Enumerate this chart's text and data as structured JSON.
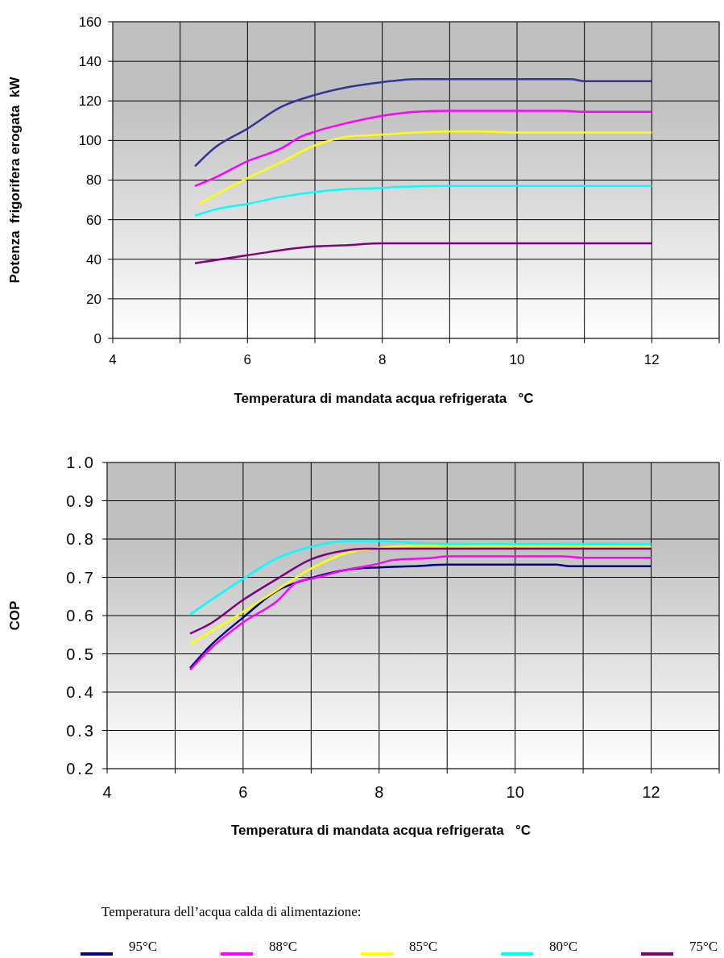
{
  "chart_data": [
    {
      "type": "line",
      "xlabel": "Temperatura di mandata acqua refrigerata   °C",
      "ylabel": "Potenza  frigorifera erogata  kW",
      "xlim": [
        4,
        13
      ],
      "xticks": [
        4,
        {
          "value": 5,
          "label": null
        },
        6,
        {
          "value": 7,
          "label": null
        },
        8,
        {
          "value": 9,
          "label": null
        },
        10,
        {
          "value": 11,
          "label": null
        },
        12,
        {
          "value": 13,
          "label": null
        }
      ],
      "ylim": [
        0,
        160
      ],
      "yticks": [
        0,
        20,
        40,
        60,
        80,
        100,
        120,
        140,
        160
      ],
      "grid": true,
      "line_style": "solid",
      "marker": "none",
      "series": [
        {
          "color": "#333399",
          "x": [
            5.22,
            5.5,
            6,
            6.5,
            7,
            7.5,
            8,
            8.5,
            9,
            10,
            10.8,
            11,
            12
          ],
          "values": [
            87,
            96,
            106,
            117,
            123,
            127,
            129.5,
            131,
            131,
            131,
            131,
            130,
            130
          ]
        },
        {
          "color": "#ff00ff",
          "x": [
            5.22,
            5.5,
            6,
            6.5,
            6.8,
            7,
            7.5,
            8,
            8.5,
            9,
            10,
            10.7,
            11,
            12
          ],
          "values": [
            77,
            81,
            89.5,
            96,
            102,
            104.5,
            109,
            112.5,
            114.5,
            115,
            115,
            115,
            114.5,
            114.5
          ]
        },
        {
          "color": "#ffff00",
          "x": [
            5.28,
            6,
            6.5,
            7,
            7.5,
            8,
            8.5,
            9,
            9.5,
            10,
            12
          ],
          "values": [
            68,
            81,
            89,
            97.5,
            102,
            103,
            104,
            104.5,
            104.5,
            104,
            104
          ]
        },
        {
          "color": "#00ffff",
          "x": [
            5.22,
            5.5,
            6,
            6.5,
            7,
            7.5,
            8,
            8.2,
            9,
            12
          ],
          "values": [
            62,
            65,
            68,
            71.5,
            74,
            75.5,
            76,
            76.5,
            77,
            77
          ]
        },
        {
          "color": "#800080",
          "x": [
            5.22,
            6,
            7,
            7.4,
            8,
            12
          ],
          "values": [
            38,
            42,
            46.5,
            47,
            48,
            48
          ]
        }
      ]
    },
    {
      "type": "line",
      "xlabel": "Temperatura di mandata acqua refrigerata   °C",
      "ylabel": "COP",
      "legend_title": "Temperatura dell’acqua calda di alimentazione:",
      "legend": "bottom",
      "xlim": [
        4,
        13
      ],
      "xticks": [
        4,
        {
          "value": 5,
          "label": null
        },
        6,
        {
          "value": 7,
          "label": null
        },
        8,
        {
          "value": 9,
          "label": null
        },
        10,
        {
          "value": 11,
          "label": null
        },
        12,
        {
          "value": 13,
          "label": null
        }
      ],
      "ylim": [
        0.2,
        1.0
      ],
      "yticks": [
        0.2,
        0.3,
        0.4,
        0.5,
        0.6,
        0.7,
        0.8,
        0.9,
        {
          "value": 1.0,
          "label": "1.0"
        }
      ],
      "grid": true,
      "line_style": "solid",
      "marker": "none",
      "series": [
        {
          "name": "95°C",
          "color": "#000080",
          "x": [
            5.22,
            5.5,
            6,
            6.5,
            7,
            7.5,
            8,
            8.5,
            9,
            10.6,
            10.8,
            12
          ],
          "values": [
            0.463,
            0.518,
            0.595,
            0.665,
            0.698,
            0.719,
            0.726,
            0.729,
            0.733,
            0.733,
            0.729,
            0.729
          ]
        },
        {
          "name": "88°C",
          "color": "#ff00ff",
          "x": [
            5.22,
            5.5,
            6,
            6.5,
            6.8,
            7,
            7.5,
            8,
            8.2,
            8.8,
            9,
            10.7,
            11,
            12
          ],
          "values": [
            0.458,
            0.51,
            0.582,
            0.638,
            0.688,
            0.696,
            0.719,
            0.736,
            0.745,
            0.751,
            0.755,
            0.755,
            0.751,
            0.751
          ]
        },
        {
          "name": "85°C",
          "color": "#ffff00",
          "x": [
            5.22,
            6,
            6.5,
            7,
            7.5,
            8,
            8.5,
            12
          ],
          "values": [
            0.525,
            0.61,
            0.667,
            0.723,
            0.762,
            0.777,
            0.782,
            0.78
          ]
        },
        {
          "name": "80°C",
          "color": "#00ffff",
          "x": [
            5.22,
            6,
            6.5,
            7,
            7.5,
            8,
            8.5,
            9,
            12
          ],
          "values": [
            0.603,
            0.696,
            0.75,
            0.78,
            0.795,
            0.795,
            0.79,
            0.787,
            0.787
          ]
        },
        {
          "name": "75°C",
          "color": "#800080",
          "x": [
            5.22,
            5.5,
            6,
            6.5,
            7,
            7.5,
            7.8,
            12
          ],
          "values": [
            0.553,
            0.577,
            0.641,
            0.696,
            0.747,
            0.77,
            0.775,
            0.775
          ]
        }
      ]
    }
  ]
}
